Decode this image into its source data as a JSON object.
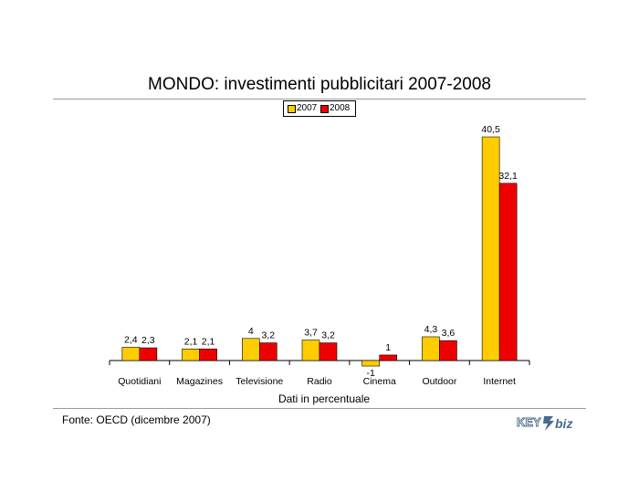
{
  "chart_data": {
    "type": "bar",
    "title": "MONDO: investimenti pubblicitari 2007-2008",
    "xlabel": "Dati in percentuale",
    "ylabel": "",
    "categories": [
      "Quotidiani",
      "Magazines",
      "Televisione",
      "Radio",
      "Cinema",
      "Outdoor",
      "Internet"
    ],
    "series": [
      {
        "name": "2007",
        "values": [
          2.4,
          2.1,
          4,
          3.7,
          -1,
          4.3,
          40.5
        ],
        "labels": [
          "2,4",
          "2,1",
          "4",
          "3,7",
          "-1",
          "4,3",
          "40,5"
        ],
        "color": "#FFCC00"
      },
      {
        "name": "2008",
        "values": [
          2.3,
          2.1,
          3.2,
          3.2,
          1,
          3.6,
          32.1
        ],
        "labels": [
          "2,3",
          "2,1",
          "3,2",
          "3,2",
          "1",
          "3,6",
          "32,1"
        ],
        "color": "#EE0000"
      }
    ],
    "ylim": [
      -1.5,
      41
    ],
    "grid": false,
    "legend": "top-center"
  },
  "footer": {
    "source": "Fonte: OECD (dicembre 2007)"
  },
  "logo": {
    "text_left": "KEY",
    "text_right": "biz",
    "color": "#4a6a8a"
  }
}
